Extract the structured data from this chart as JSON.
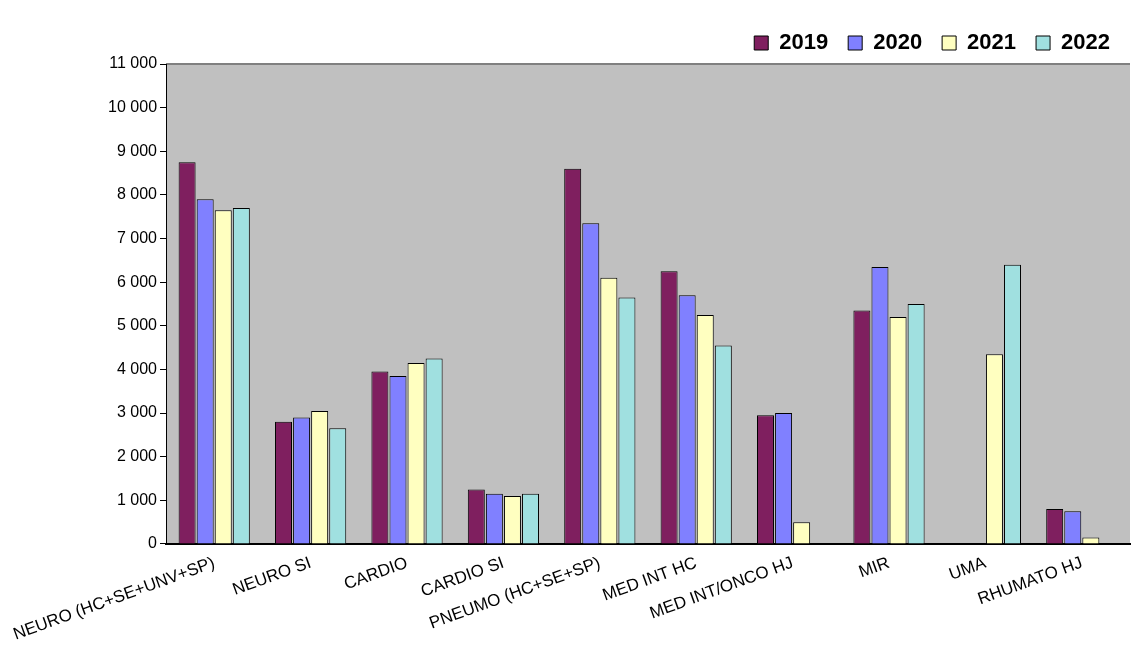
{
  "chart_data": {
    "type": "bar",
    "categories": [
      "NEURO (HC+SE+UNV+SP)",
      "NEURO SI",
      "CARDIO",
      "CARDIO SI",
      "PNEUMO (HC+SE+SP)",
      "MED INT HC",
      "MED INT/ONCO HJ",
      "MIR",
      "UMA",
      "RHUMATO HJ"
    ],
    "series": [
      {
        "name": "2019",
        "color": "#7f1f5f",
        "values": [
          8750,
          2800,
          3950,
          1250,
          8600,
          6250,
          2950,
          5350,
          null,
          800
        ]
      },
      {
        "name": "2020",
        "color": "#8080ff",
        "values": [
          7900,
          2900,
          3850,
          1150,
          7350,
          5700,
          3000,
          6350,
          null,
          750
        ]
      },
      {
        "name": "2021",
        "color": "#ffffc0",
        "values": [
          7650,
          3050,
          4150,
          1100,
          6100,
          5250,
          500,
          5200,
          4350,
          150
        ]
      },
      {
        "name": "2022",
        "color": "#a0e0e0",
        "values": [
          7700,
          2650,
          4250,
          1150,
          5650,
          4550,
          null,
          5500,
          6400,
          null
        ]
      }
    ],
    "ylim": [
      0,
      11000
    ],
    "yticks": [
      0,
      {
        "value": 1000,
        "label": "1 000"
      },
      {
        "value": 2000,
        "label": "2 000"
      },
      {
        "value": 3000,
        "label": "3 000"
      },
      {
        "value": 4000,
        "label": "4 000"
      },
      {
        "value": 5000,
        "label": "5 000"
      },
      {
        "value": 6000,
        "label": "6 000"
      },
      {
        "value": 7000,
        "label": "7 000"
      },
      {
        "value": 8000,
        "label": "8 000"
      },
      {
        "value": 9000,
        "label": "9 000"
      },
      {
        "value": 10000,
        "label": "10 000"
      },
      {
        "value": 11000,
        "label": "11 000"
      }
    ],
    "grid": false,
    "legend": "top right"
  }
}
